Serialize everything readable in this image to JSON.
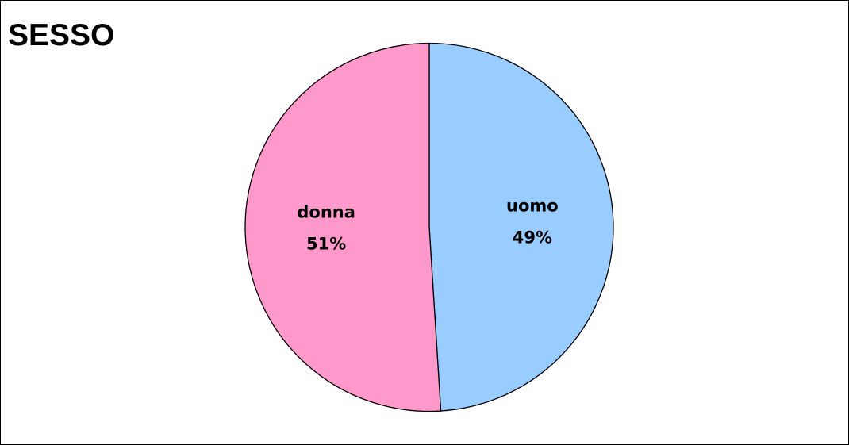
{
  "chart_data": {
    "type": "pie",
    "title": "SESSO",
    "slices": [
      {
        "label": "uomo",
        "value": 49,
        "display": "49%",
        "color": "#99ccff"
      },
      {
        "label": "donna",
        "value": 51,
        "display": "51%",
        "color": "#ff99cc"
      }
    ],
    "start": "top",
    "direction": "clockwise",
    "legend": "none"
  }
}
